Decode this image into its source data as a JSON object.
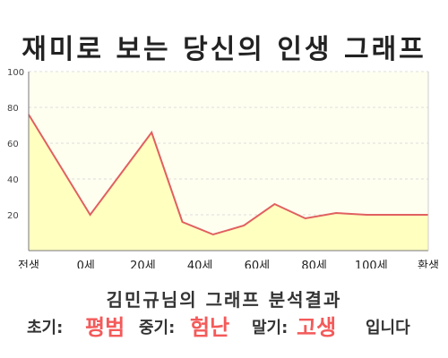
{
  "header": {
    "title": "재미로 보는 당신의 인생 그래프"
  },
  "footer": {
    "subtitle": "김민규님의 그래프 분석결과",
    "early_label": "초기:",
    "early_value": "평범",
    "middle_label": "중기:",
    "middle_value": "험난",
    "late_label": "말기:",
    "late_value": "고생",
    "ending": "입니다"
  },
  "colors": {
    "line": "#e06060",
    "fill": "#ffffc0",
    "background": "#fffff0",
    "highlight": "#f45a5a"
  },
  "chart_data": {
    "type": "area",
    "x_labels": [
      "전생",
      "0세",
      "20세",
      "40세",
      "60세",
      "80세",
      "100세",
      "환생"
    ],
    "x": [
      -20,
      0,
      10,
      20,
      30,
      40,
      50,
      60,
      70,
      80,
      90,
      100,
      110
    ],
    "values": [
      76,
      20,
      43,
      66,
      16,
      9,
      14,
      26,
      18,
      21,
      20,
      20,
      20
    ],
    "y_ticks": [
      20,
      40,
      60,
      80,
      100
    ],
    "ylim": [
      0,
      100
    ],
    "grid": true
  }
}
